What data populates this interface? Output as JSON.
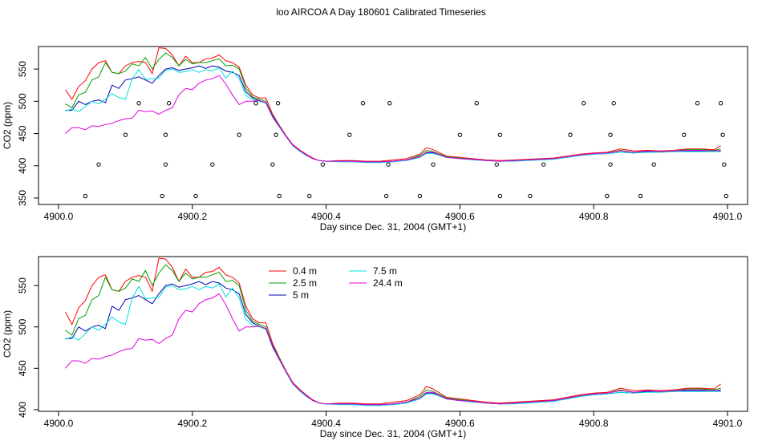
{
  "title": "loo AIRCOA A  Day 180601  Calibrated Timeseries",
  "colors": {
    "0.4 m": "#ff0000",
    "2.5 m": "#00a000",
    "5 m": "#0000b0",
    "7.5 m": "#00e0e0",
    "24.4 m": "#e000e0",
    "points": "#000000"
  },
  "chart_data": [
    {
      "type": "line",
      "xlabel": "Day since Dec. 31, 2004 (GMT+1)",
      "ylabel": "CO2 (ppm)",
      "xlim": [
        4899.97,
        4901.03
      ],
      "ylim": [
        340,
        585
      ],
      "xticks": [
        4900.0,
        4900.2,
        4900.4,
        4900.6,
        4900.8,
        4901.0
      ],
      "xtick_labels": [
        "4900.0",
        "4900.2",
        "4900.4",
        "4900.6",
        "4900.8",
        "4901.0"
      ],
      "yticks": [
        350,
        400,
        450,
        500,
        550
      ],
      "ytick_labels": [
        "350",
        "400",
        "450",
        "500",
        "550"
      ],
      "legend": false,
      "x": [
        4900.01,
        4900.02,
        4900.03,
        4900.04,
        4900.05,
        4900.06,
        4900.07,
        4900.08,
        4900.09,
        4900.1,
        4900.11,
        4900.12,
        4900.13,
        4900.14,
        4900.15,
        4900.16,
        4900.17,
        4900.18,
        4900.19,
        4900.2,
        4900.21,
        4900.22,
        4900.23,
        4900.24,
        4900.25,
        4900.26,
        4900.27,
        4900.28,
        4900.29,
        4900.3,
        4900.31,
        4900.32,
        4900.33,
        4900.34,
        4900.35,
        4900.36,
        4900.37,
        4900.38,
        4900.39,
        4900.4,
        4900.42,
        4900.44,
        4900.46,
        4900.48,
        4900.5,
        4900.52,
        4900.54,
        4900.55,
        4900.56,
        4900.57,
        4900.58,
        4900.6,
        4900.62,
        4900.64,
        4900.66,
        4900.68,
        4900.7,
        4900.72,
        4900.74,
        4900.76,
        4900.78,
        4900.8,
        4900.82,
        4900.84,
        4900.86,
        4900.88,
        4900.9,
        4900.92,
        4900.94,
        4900.96,
        4900.98,
        4900.99
      ],
      "series": [
        {
          "name": "0.4 m",
          "values": [
            518,
            503,
            523,
            532,
            550,
            560,
            563,
            545,
            543,
            555,
            560,
            562,
            560,
            543,
            583,
            582,
            572,
            555,
            570,
            560,
            560,
            566,
            567,
            572,
            563,
            560,
            553,
            525,
            510,
            505,
            505,
            480,
            463,
            447,
            433,
            425,
            418,
            412,
            408,
            407,
            408,
            408,
            407,
            407,
            409,
            411,
            418,
            428,
            425,
            420,
            415,
            413,
            411,
            409,
            408,
            409,
            410,
            411,
            412,
            415,
            418,
            420,
            421,
            426,
            423,
            424,
            423,
            424,
            426,
            426,
            425,
            431
          ]
        },
        {
          "name": "2.5 m",
          "values": [
            496,
            490,
            510,
            514,
            533,
            538,
            560,
            545,
            543,
            547,
            558,
            555,
            568,
            550,
            565,
            575,
            568,
            555,
            565,
            558,
            560,
            560,
            563,
            566,
            555,
            556,
            550,
            520,
            507,
            503,
            500,
            478,
            462,
            446,
            432,
            424,
            417,
            411,
            408,
            407,
            407,
            407,
            406,
            406,
            407,
            409,
            416,
            424,
            422,
            418,
            414,
            412,
            410,
            408,
            407,
            408,
            409,
            410,
            411,
            414,
            417,
            419,
            420,
            424,
            421,
            423,
            422,
            423,
            425,
            425,
            424,
            426
          ]
        },
        {
          "name": "5 m",
          "values": [
            486,
            486,
            500,
            495,
            500,
            502,
            498,
            525,
            520,
            533,
            535,
            538,
            533,
            528,
            540,
            550,
            552,
            548,
            550,
            552,
            555,
            551,
            555,
            553,
            547,
            545,
            540,
            515,
            505,
            501,
            498,
            477,
            461,
            446,
            432,
            424,
            417,
            411,
            408,
            407,
            407,
            407,
            406,
            406,
            407,
            409,
            414,
            420,
            420,
            417,
            413,
            411,
            410,
            408,
            407,
            408,
            409,
            410,
            411,
            413,
            416,
            418,
            419,
            421,
            420,
            422,
            422,
            422,
            423,
            423,
            423,
            423
          ]
        },
        {
          "name": "7.5 m",
          "values": [
            485,
            488,
            484,
            492,
            500,
            496,
            503,
            512,
            506,
            503,
            535,
            549,
            534,
            535,
            536,
            548,
            550,
            545,
            546,
            549,
            545,
            549,
            547,
            552,
            536,
            547,
            535,
            509,
            502,
            500,
            497,
            475,
            460,
            445,
            431,
            423,
            416,
            411,
            408,
            407,
            406,
            406,
            405,
            405,
            406,
            408,
            413,
            419,
            419,
            416,
            413,
            411,
            409,
            408,
            407,
            407,
            408,
            409,
            410,
            413,
            416,
            418,
            419,
            421,
            420,
            421,
            421,
            422,
            422,
            422,
            422,
            422
          ]
        },
        {
          "name": "24.4 m",
          "values": [
            450,
            459,
            459,
            456,
            462,
            461,
            464,
            466,
            470,
            473,
            474,
            486,
            484,
            485,
            480,
            486,
            490,
            510,
            520,
            518,
            528,
            533,
            535,
            540,
            527,
            510,
            495,
            500,
            500,
            501,
            498,
            476,
            461,
            446,
            432,
            424,
            417,
            411,
            408,
            407,
            407,
            407,
            406,
            406,
            407,
            409,
            414,
            421,
            421,
            417,
            413,
            411,
            410,
            408,
            407,
            408,
            409,
            410,
            411,
            414,
            417,
            419,
            420,
            423,
            421,
            423,
            422,
            423,
            424,
            424,
            423,
            424
          ]
        }
      ],
      "points": {
        "type": "scatter",
        "x": [
          4900.04,
          4900.06,
          4900.1,
          4900.12,
          4900.155,
          4900.16,
          4900.16,
          4900.165,
          4900.205,
          4900.23,
          4900.27,
          4900.295,
          4900.32,
          4900.325,
          4900.328,
          4900.33,
          4900.375,
          4900.395,
          4900.435,
          4900.455,
          4900.49,
          4900.493,
          4900.495,
          4900.54,
          4900.56,
          4900.6,
          4900.625,
          4900.655,
          4900.66,
          4900.66,
          4900.705,
          4900.725,
          4900.765,
          4900.785,
          4900.82,
          4900.825,
          4900.825,
          4900.83,
          4900.87,
          4900.89,
          4900.935,
          4900.955,
          4900.99,
          4900.993,
          4900.995,
          4900.998
        ],
        "y": [
          353,
          402,
          448,
          497,
          353,
          448,
          402,
          497,
          353,
          402,
          448,
          497,
          402,
          448,
          497,
          353,
          353,
          402,
          448,
          497,
          353,
          402,
          497,
          353,
          402,
          448,
          497,
          402,
          448,
          353,
          353,
          402,
          448,
          497,
          353,
          402,
          448,
          497,
          353,
          402,
          448,
          497,
          497,
          448,
          402,
          353
        ]
      }
    },
    {
      "type": "line",
      "xlabel": "Day since Dec. 31, 2004 (GMT+1)",
      "ylabel": "CO2 (ppm)",
      "xlim": [
        4899.97,
        4901.03
      ],
      "ylim": [
        398,
        585
      ],
      "xticks": [
        4900.0,
        4900.2,
        4900.4,
        4900.6,
        4900.8,
        4901.0
      ],
      "xtick_labels": [
        "4900.0",
        "4900.2",
        "4900.4",
        "4900.6",
        "4900.8",
        "4901.0"
      ],
      "yticks": [
        400,
        450,
        500,
        550
      ],
      "ytick_labels": [
        "400",
        "450",
        "500",
        "550"
      ],
      "legend": true,
      "legend_labels": [
        "0.4 m",
        "2.5 m",
        "5 m",
        "7.5 m",
        "24.4 m"
      ],
      "series_ref": "same series as the upper panel"
    }
  ]
}
